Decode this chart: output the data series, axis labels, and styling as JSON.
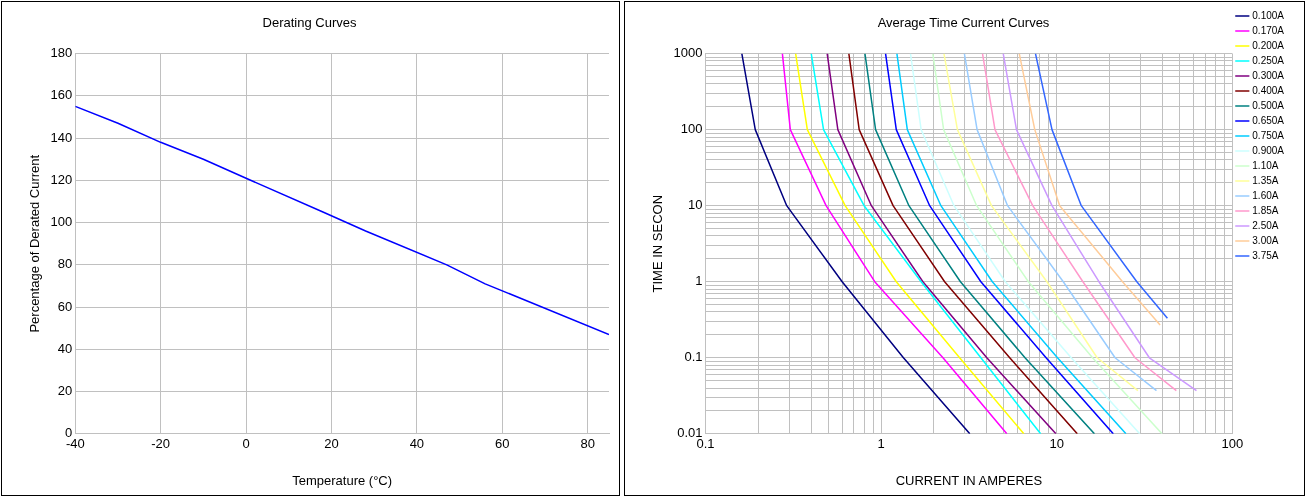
{
  "chart_data": [
    {
      "type": "line",
      "title": "Derating Curves",
      "xlabel": "Temperature (°C)",
      "ylabel": "Percentage of Derated Current",
      "x": [
        -40,
        -30,
        -20,
        -10,
        0,
        18,
        28,
        47,
        56,
        85
      ],
      "values": [
        155,
        147,
        138,
        130,
        121,
        105,
        96,
        80,
        71,
        47
      ],
      "color": "#0000ff",
      "marker": "none",
      "legend": false,
      "grid": true,
      "xlim": [
        -40,
        85
      ],
      "xticks": [
        -40,
        -20,
        0,
        20,
        40,
        60,
        80
      ],
      "ylim": [
        0,
        180
      ],
      "yticks": [
        0,
        20,
        40,
        60,
        80,
        100,
        120,
        140,
        160,
        180
      ]
    },
    {
      "type": "line",
      "title": "Average Time Current Curves",
      "xlabel": "CURRENT IN AMPERES",
      "ylabel": "TIME IN SECON",
      "marker": "none",
      "legend": "right",
      "grid": true,
      "log": "xy",
      "xlim": [
        0.1,
        100
      ],
      "xticks": [
        0.1,
        {
          "value": 0.2,
          "label": null
        },
        {
          "value": 0.3,
          "label": null
        },
        {
          "value": 0.4,
          "label": null
        },
        {
          "value": 0.5,
          "label": null
        },
        {
          "value": 0.6,
          "label": null
        },
        {
          "value": 0.7,
          "label": null
        },
        {
          "value": 0.8,
          "label": null
        },
        {
          "value": 0.9,
          "label": null
        },
        1,
        {
          "value": 2,
          "label": null
        },
        {
          "value": 3,
          "label": null
        },
        {
          "value": 4,
          "label": null
        },
        {
          "value": 5,
          "label": null
        },
        {
          "value": 6,
          "label": null
        },
        {
          "value": 7,
          "label": null
        },
        {
          "value": 8,
          "label": null
        },
        {
          "value": 9,
          "label": null
        },
        10,
        {
          "value": 20,
          "label": null
        },
        {
          "value": 30,
          "label": null
        },
        {
          "value": 40,
          "label": null
        },
        {
          "value": 50,
          "label": null
        },
        {
          "value": 60,
          "label": null
        },
        {
          "value": 70,
          "label": null
        },
        {
          "value": 80,
          "label": null
        },
        {
          "value": 90,
          "label": null
        },
        100
      ],
      "ylim": [
        0.01,
        1000
      ],
      "yticks": [
        0.01,
        {
          "value": 0.02,
          "label": null
        },
        {
          "value": 0.03,
          "label": null
        },
        {
          "value": 0.04,
          "label": null
        },
        {
          "value": 0.05,
          "label": null
        },
        {
          "value": 0.06,
          "label": null
        },
        {
          "value": 0.07,
          "label": null
        },
        {
          "value": 0.08,
          "label": null
        },
        {
          "value": 0.09,
          "label": null
        },
        0.1,
        {
          "value": 0.2,
          "label": null
        },
        {
          "value": 0.3,
          "label": null
        },
        {
          "value": 0.4,
          "label": null
        },
        {
          "value": 0.5,
          "label": null
        },
        {
          "value": 0.6,
          "label": null
        },
        {
          "value": 0.7,
          "label": null
        },
        {
          "value": 0.8,
          "label": null
        },
        {
          "value": 0.9,
          "label": null
        },
        1,
        {
          "value": 2,
          "label": null
        },
        {
          "value": 3,
          "label": null
        },
        {
          "value": 4,
          "label": null
        },
        {
          "value": 5,
          "label": null
        },
        {
          "value": 6,
          "label": null
        },
        {
          "value": 7,
          "label": null
        },
        {
          "value": 8,
          "label": null
        },
        {
          "value": 9,
          "label": null
        },
        10,
        {
          "value": 20,
          "label": null
        },
        {
          "value": 30,
          "label": null
        },
        {
          "value": 40,
          "label": null
        },
        {
          "value": 50,
          "label": null
        },
        {
          "value": 60,
          "label": null
        },
        {
          "value": 70,
          "label": null
        },
        {
          "value": 80,
          "label": null
        },
        {
          "value": 90,
          "label": null
        },
        100,
        {
          "value": 200,
          "label": null
        },
        {
          "value": 300,
          "label": null
        },
        {
          "value": 400,
          "label": null
        },
        {
          "value": 500,
          "label": null
        },
        {
          "value": 600,
          "label": null
        },
        {
          "value": 700,
          "label": null
        },
        {
          "value": 800,
          "label": null
        },
        {
          "value": 900,
          "label": null
        },
        1000
      ],
      "series": [
        {
          "name": "0.100A",
          "color": "#000080",
          "x": [
            0.161,
            0.192,
            0.29,
            0.6,
            1.34,
            3.2
          ],
          "values": [
            1000,
            100,
            10,
            1,
            0.1,
            0.01
          ]
        },
        {
          "name": "0.170A",
          "color": "#ff00ff",
          "x": [
            0.274,
            0.304,
            0.486,
            0.92,
            2.25,
            5.2
          ],
          "values": [
            1000,
            100,
            10,
            1,
            0.1,
            0.01
          ]
        },
        {
          "name": "0.200A",
          "color": "#ffff00",
          "x": [
            0.326,
            0.38,
            0.624,
            1.22,
            2.8,
            6.5
          ],
          "values": [
            1000,
            100,
            10,
            1,
            0.1,
            0.01
          ]
        },
        {
          "name": "0.250A",
          "color": "#00ffff",
          "x": [
            0.4,
            0.47,
            0.8,
            1.69,
            3.7,
            8.1
          ],
          "values": [
            1000,
            100,
            10,
            1,
            0.1,
            0.01
          ]
        },
        {
          "name": "0.300A",
          "color": "#800080",
          "x": [
            0.493,
            0.567,
            0.88,
            1.73,
            4.0,
            9.9
          ],
          "values": [
            1000,
            100,
            10,
            1,
            0.1,
            0.01
          ]
        },
        {
          "name": "0.400A",
          "color": "#800000",
          "x": [
            0.655,
            0.75,
            1.17,
            2.3,
            5.4,
            13.1
          ],
          "values": [
            1000,
            100,
            10,
            1,
            0.1,
            0.01
          ]
        },
        {
          "name": "0.500A",
          "color": "#008080",
          "x": [
            0.809,
            0.93,
            1.44,
            2.83,
            6.6,
            16.4
          ],
          "values": [
            1000,
            100,
            10,
            1,
            0.1,
            0.01
          ]
        },
        {
          "name": "0.650A",
          "color": "#0000ff",
          "x": [
            1.06,
            1.22,
            1.89,
            3.7,
            8.7,
            21
          ],
          "values": [
            1000,
            100,
            10,
            1,
            0.1,
            0.01
          ]
        },
        {
          "name": "0.750A",
          "color": "#00ccff",
          "x": [
            1.23,
            1.41,
            2.19,
            4.3,
            10.1,
            24.8
          ],
          "values": [
            1000,
            100,
            10,
            1,
            0.1,
            0.01
          ]
        },
        {
          "name": "0.900A",
          "color": "#ccffff",
          "x": [
            1.47,
            1.69,
            2.6,
            5.1,
            12.1,
            29.7
          ],
          "values": [
            1000,
            100,
            10,
            1,
            0.1,
            0.01
          ]
        },
        {
          "name": "1.10A",
          "color": "#ccffcc",
          "x": [
            1.97,
            2.27,
            3.5,
            6.9,
            16,
            39.8
          ],
          "values": [
            1000,
            100,
            10,
            1,
            0.1,
            0.01
          ]
        },
        {
          "name": "1.35A",
          "color": "#ffff99",
          "x": [
            2.28,
            2.72,
            4.25,
            8.8,
            17,
            29
          ],
          "values": [
            1000,
            100,
            10,
            1,
            0.1,
            0.037
          ]
        },
        {
          "name": "1.60A",
          "color": "#99ccff",
          "x": [
            2.98,
            3.52,
            5.25,
            10.9,
            21.5,
            37
          ],
          "values": [
            1000,
            100,
            10,
            1,
            0.1,
            0.037
          ]
        },
        {
          "name": "1.85A",
          "color": "#ff99cc",
          "x": [
            3.78,
            4.45,
            7.3,
            14.1,
            27.9,
            48
          ],
          "values": [
            1000,
            100,
            10,
            1,
            0.1,
            0.037
          ]
        },
        {
          "name": "2.50A",
          "color": "#cc99ff",
          "x": [
            4.96,
            5.9,
            9.4,
            17.4,
            33.7,
            62.5
          ],
          "values": [
            1000,
            100,
            10,
            1,
            0.1,
            0.037
          ]
        },
        {
          "name": "3.00A",
          "color": "#ffcc99",
          "x": [
            6.12,
            7.5,
            10.4,
            23.7,
            38.8
          ],
          "values": [
            1000,
            100,
            10,
            1,
            0.27
          ]
        },
        {
          "name": "3.75A",
          "color": "#3366ff",
          "x": [
            7.57,
            9.4,
            13.8,
            28.6,
            42.7
          ],
          "values": [
            1000,
            100,
            10,
            1,
            0.33
          ]
        }
      ]
    }
  ]
}
